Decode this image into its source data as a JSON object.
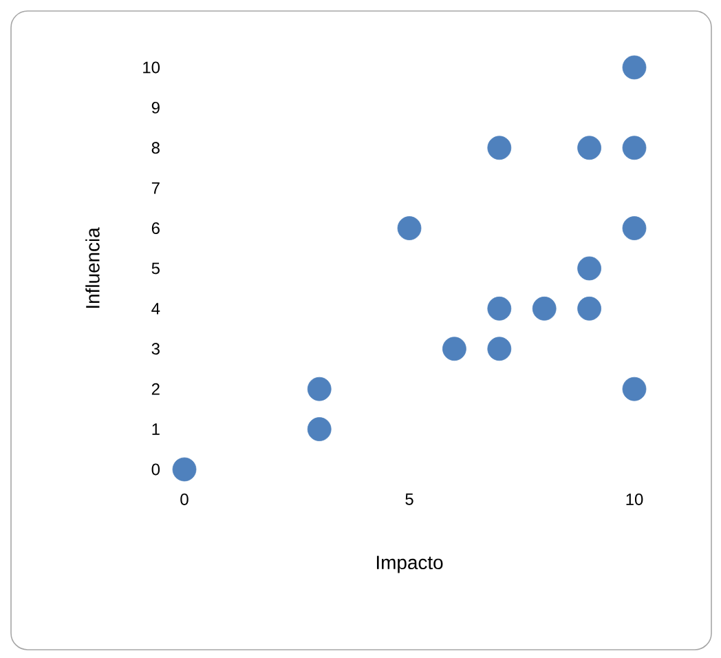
{
  "chart_data": {
    "type": "scatter",
    "xlabel": "Impacto",
    "ylabel": "Influencia",
    "x": [
      0,
      3,
      3,
      5,
      6,
      7,
      7,
      7,
      8,
      9,
      9,
      9,
      10,
      10,
      10,
      10
    ],
    "values": [
      0,
      1,
      2,
      6,
      3,
      3,
      4,
      8,
      4,
      4,
      5,
      8,
      2,
      6,
      8,
      10
    ],
    "color": "#4f81bd",
    "marker": "circle",
    "xlim": [
      0,
      10
    ],
    "ylim": [
      0,
      10
    ],
    "xticks": [
      0,
      5,
      10
    ],
    "yticks": [
      0,
      1,
      2,
      3,
      4,
      5,
      6,
      7,
      8,
      9,
      10
    ]
  }
}
